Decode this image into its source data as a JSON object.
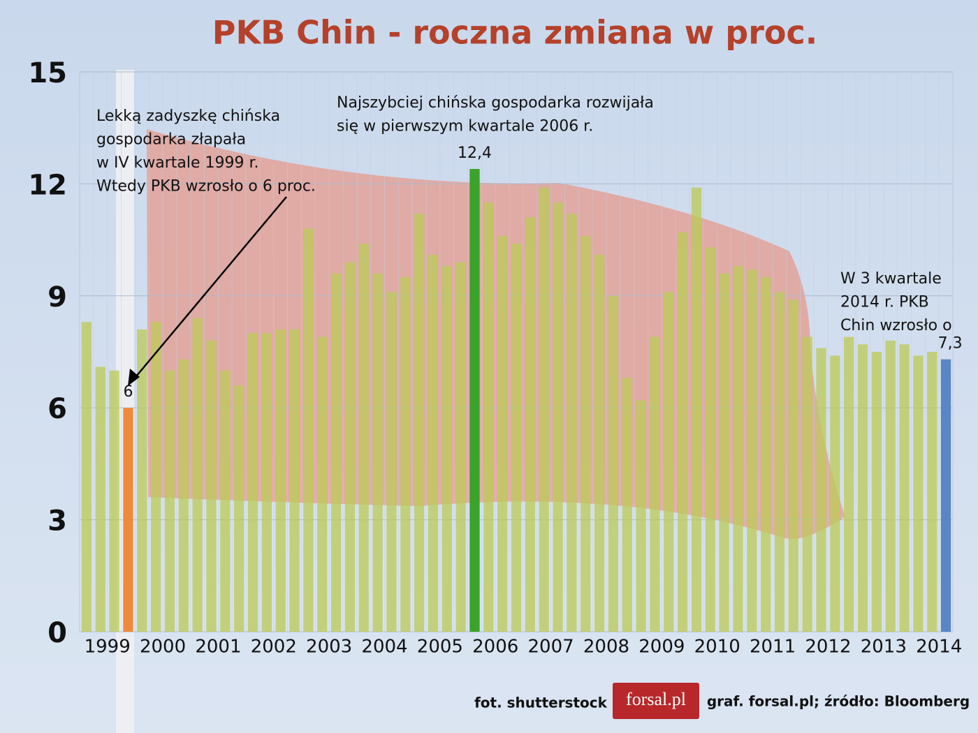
{
  "chart_data": {
    "type": "bar",
    "title": "PKB Chin - roczna zmiana w proc.",
    "categories": [
      null,
      "1999",
      null,
      null,
      null,
      "2000",
      null,
      null,
      null,
      "2001",
      null,
      null,
      null,
      "2002",
      null,
      null,
      null,
      "2003",
      null,
      null,
      null,
      "2004",
      null,
      null,
      null,
      "2005",
      null,
      null,
      null,
      "2006",
      null,
      null,
      null,
      "2007",
      null,
      null,
      null,
      "2008",
      null,
      null,
      null,
      "2009",
      null,
      null,
      null,
      "2010",
      null,
      null,
      null,
      "2011",
      null,
      null,
      null,
      "2012",
      null,
      null,
      null,
      "2013",
      null,
      null,
      null,
      "2014",
      null
    ],
    "values": [
      8.3,
      7.1,
      7.0,
      6.0,
      8.1,
      8.3,
      7.0,
      7.3,
      8.4,
      7.8,
      7.0,
      6.6,
      8.0,
      8.0,
      8.1,
      8.1,
      10.8,
      7.9,
      9.6,
      9.9,
      10.4,
      9.6,
      9.1,
      9.5,
      11.2,
      10.1,
      9.8,
      9.9,
      12.4,
      11.5,
      10.6,
      10.4,
      11.1,
      11.9,
      11.5,
      11.2,
      10.6,
      10.1,
      9.0,
      6.8,
      6.2,
      7.9,
      9.1,
      10.7,
      11.9,
      10.3,
      9.6,
      9.8,
      9.7,
      9.5,
      9.1,
      8.9,
      7.9,
      7.6,
      7.4,
      7.9,
      7.7,
      7.5,
      7.8,
      7.7,
      7.4,
      7.5,
      7.3
    ],
    "value_labels": [
      null,
      null,
      null,
      "6",
      null,
      null,
      null,
      null,
      null,
      null,
      null,
      null,
      null,
      null,
      null,
      null,
      null,
      null,
      null,
      null,
      null,
      null,
      null,
      null,
      null,
      null,
      null,
      null,
      "12,4",
      null,
      null,
      null,
      null,
      null,
      null,
      null,
      null,
      null,
      null,
      null,
      null,
      null,
      null,
      null,
      null,
      null,
      null,
      null,
      null,
      null,
      null,
      null,
      null,
      null,
      null,
      null,
      null,
      null,
      null,
      null,
      null,
      null,
      "7,3"
    ],
    "color": "#bccb5a",
    "highlight_colors": {
      "3": "#ef8a3a",
      "28": "#3aa32a",
      "62": "#5b86c4"
    },
    "ylim": [
      0,
      15
    ],
    "yticks": [
      0,
      3,
      6,
      9,
      12,
      15
    ],
    "grid": true,
    "annotations": [
      {
        "lines": [
          "Lekką zadyszkę chińska",
          "gospodarka złapała",
          "w IV kwartale 1999 r.",
          "Wtedy PKB wzrosło o 6 proc."
        ]
      },
      {
        "lines": [
          "Najszybciej chińska gospodarka rozwijała",
          "się w pierwszym kwartale 2006 r."
        ]
      },
      {
        "lines": [
          "W 3 kwartale",
          "2014 r. PKB",
          "Chin wzrosło o"
        ]
      }
    ],
    "footer": {
      "photo": "fot. shutterstock",
      "logo": "forsal.pl",
      "source": "graf. forsal.pl;  źródło: Bloomberg"
    }
  }
}
